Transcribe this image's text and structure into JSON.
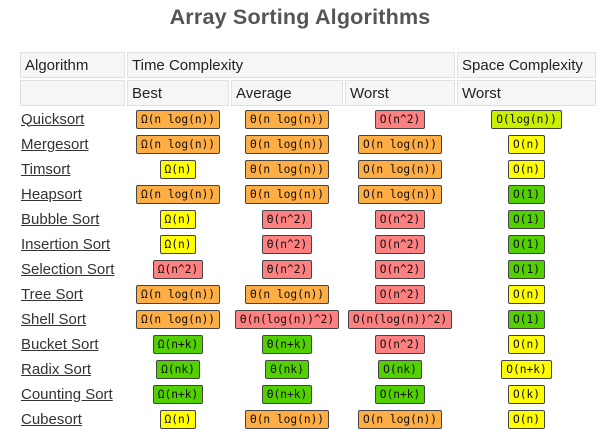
{
  "title": "Array Sorting Algorithms",
  "header": {
    "algorithm": "Algorithm",
    "time_complexity": "Time Complexity",
    "space_complexity": "Space Complexity",
    "best": "Best",
    "average": "Average",
    "worst": "Worst",
    "space_worst": "Worst"
  },
  "colors": {
    "orange": "#ffad45",
    "red": "#ff8080",
    "yellow": "#ffff00",
    "green": "#53d000",
    "lime": "#cbf000"
  },
  "rows": [
    {
      "name": "Quicksort",
      "best": {
        "text": "Ω(n log(n))",
        "color": "orange"
      },
      "average": {
        "text": "Θ(n log(n))",
        "color": "orange"
      },
      "worst": {
        "text": "O(n^2)",
        "color": "red"
      },
      "space": {
        "text": "O(log(n))",
        "color": "lime"
      }
    },
    {
      "name": "Mergesort",
      "best": {
        "text": "Ω(n log(n))",
        "color": "orange"
      },
      "average": {
        "text": "Θ(n log(n))",
        "color": "orange"
      },
      "worst": {
        "text": "O(n log(n))",
        "color": "orange"
      },
      "space": {
        "text": "O(n)",
        "color": "yellow"
      }
    },
    {
      "name": "Timsort",
      "best": {
        "text": "Ω(n)",
        "color": "yellow"
      },
      "average": {
        "text": "Θ(n log(n))",
        "color": "orange"
      },
      "worst": {
        "text": "O(n log(n))",
        "color": "orange"
      },
      "space": {
        "text": "O(n)",
        "color": "yellow"
      }
    },
    {
      "name": "Heapsort",
      "best": {
        "text": "Ω(n log(n))",
        "color": "orange"
      },
      "average": {
        "text": "Θ(n log(n))",
        "color": "orange"
      },
      "worst": {
        "text": "O(n log(n))",
        "color": "orange"
      },
      "space": {
        "text": "O(1)",
        "color": "green"
      }
    },
    {
      "name": "Bubble Sort",
      "best": {
        "text": "Ω(n)",
        "color": "yellow"
      },
      "average": {
        "text": "Θ(n^2)",
        "color": "red"
      },
      "worst": {
        "text": "O(n^2)",
        "color": "red"
      },
      "space": {
        "text": "O(1)",
        "color": "green"
      }
    },
    {
      "name": "Insertion Sort",
      "best": {
        "text": "Ω(n)",
        "color": "yellow"
      },
      "average": {
        "text": "Θ(n^2)",
        "color": "red"
      },
      "worst": {
        "text": "O(n^2)",
        "color": "red"
      },
      "space": {
        "text": "O(1)",
        "color": "green"
      }
    },
    {
      "name": "Selection Sort",
      "best": {
        "text": "Ω(n^2)",
        "color": "red"
      },
      "average": {
        "text": "Θ(n^2)",
        "color": "red"
      },
      "worst": {
        "text": "O(n^2)",
        "color": "red"
      },
      "space": {
        "text": "O(1)",
        "color": "green"
      }
    },
    {
      "name": "Tree Sort",
      "best": {
        "text": "Ω(n log(n))",
        "color": "orange"
      },
      "average": {
        "text": "Θ(n log(n))",
        "color": "orange"
      },
      "worst": {
        "text": "O(n^2)",
        "color": "red"
      },
      "space": {
        "text": "O(n)",
        "color": "yellow"
      }
    },
    {
      "name": "Shell Sort",
      "best": {
        "text": "Ω(n log(n))",
        "color": "orange"
      },
      "average": {
        "text": "Θ(n(log(n))^2)",
        "color": "red"
      },
      "worst": {
        "text": "O(n(log(n))^2)",
        "color": "red"
      },
      "space": {
        "text": "O(1)",
        "color": "green"
      }
    },
    {
      "name": "Bucket Sort",
      "best": {
        "text": "Ω(n+k)",
        "color": "green"
      },
      "average": {
        "text": "Θ(n+k)",
        "color": "green"
      },
      "worst": {
        "text": "O(n^2)",
        "color": "red"
      },
      "space": {
        "text": "O(n)",
        "color": "yellow"
      }
    },
    {
      "name": "Radix Sort",
      "best": {
        "text": "Ω(nk)",
        "color": "green"
      },
      "average": {
        "text": "Θ(nk)",
        "color": "green"
      },
      "worst": {
        "text": "O(nk)",
        "color": "green"
      },
      "space": {
        "text": "O(n+k)",
        "color": "yellow"
      }
    },
    {
      "name": "Counting Sort",
      "best": {
        "text": "Ω(n+k)",
        "color": "green"
      },
      "average": {
        "text": "Θ(n+k)",
        "color": "green"
      },
      "worst": {
        "text": "O(n+k)",
        "color": "green"
      },
      "space": {
        "text": "O(k)",
        "color": "yellow"
      }
    },
    {
      "name": "Cubesort",
      "best": {
        "text": "Ω(n)",
        "color": "yellow"
      },
      "average": {
        "text": "Θ(n log(n))",
        "color": "orange"
      },
      "worst": {
        "text": "O(n log(n))",
        "color": "orange"
      },
      "space": {
        "text": "O(n)",
        "color": "yellow"
      }
    }
  ]
}
